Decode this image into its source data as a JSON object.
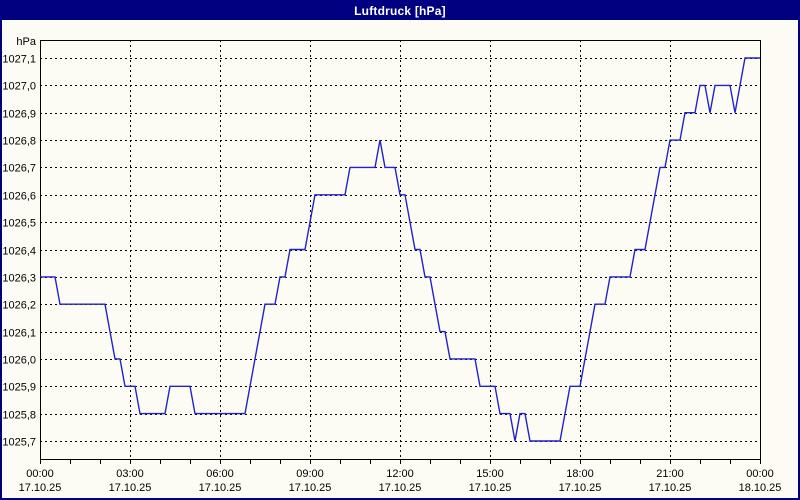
{
  "title": "Luftdruck [hPa]",
  "colors": {
    "titlebar_background": "#000080",
    "titlebar_text": "#ffffff",
    "outer_border": "#000080",
    "background": "#fcfcf4",
    "plot_frame": "#000000",
    "gridline": "#000000",
    "line": "#2222cc",
    "label_text": "#000000"
  },
  "y_axis": {
    "unit_label": "hPa",
    "min": 1025.7,
    "max": 1027.1,
    "step": 0.1,
    "tick_labels": [
      "1027,1",
      "1027,0",
      "1026,9",
      "1026,8",
      "1026,7",
      "1026,6",
      "1026,5",
      "1026,4",
      "1026,3",
      "1026,2",
      "1026,1",
      "1026,0",
      "1025,9",
      "1025,8",
      "1025,7"
    ]
  },
  "x_axis": {
    "minor_tick_interval_hours": 1,
    "major_tick_interval_hours": 3,
    "major_ticks": [
      {
        "time": "00:00",
        "date": "17.10.25"
      },
      {
        "time": "03:00",
        "date": "17.10.25"
      },
      {
        "time": "06:00",
        "date": "17.10.25"
      },
      {
        "time": "09:00",
        "date": "17.10.25"
      },
      {
        "time": "12:00",
        "date": "17.10.25"
      },
      {
        "time": "15:00",
        "date": "17.10.25"
      },
      {
        "time": "18:00",
        "date": "17.10.25"
      },
      {
        "time": "21:00",
        "date": "17.10.25"
      },
      {
        "time": "00:00",
        "date": "18.10.25"
      }
    ]
  },
  "chart_data": {
    "type": "line",
    "title": "Luftdruck [hPa]",
    "ylabel": "hPa",
    "ylim": [
      1025.7,
      1027.1
    ],
    "grid": true,
    "start": "17.10.25 00:00",
    "end": "18.10.25 00:00",
    "sample_interval_minutes": 10,
    "series": [
      {
        "name": "Luftdruck",
        "values": [
          1026.3,
          1026.3,
          1026.3,
          1026.3,
          1026.2,
          1026.2,
          1026.2,
          1026.2,
          1026.2,
          1026.2,
          1026.2,
          1026.2,
          1026.2,
          1026.2,
          1026.1,
          1026.0,
          1026.0,
          1025.9,
          1025.9,
          1025.9,
          1025.8,
          1025.8,
          1025.8,
          1025.8,
          1025.8,
          1025.8,
          1025.9,
          1025.9,
          1025.9,
          1025.9,
          1025.9,
          1025.8,
          1025.8,
          1025.8,
          1025.8,
          1025.8,
          1025.8,
          1025.8,
          1025.8,
          1025.8,
          1025.8,
          1025.8,
          1025.9,
          1026.0,
          1026.1,
          1026.2,
          1026.2,
          1026.2,
          1026.3,
          1026.3,
          1026.4,
          1026.4,
          1026.4,
          1026.4,
          1026.5,
          1026.6,
          1026.6,
          1026.6,
          1026.6,
          1026.6,
          1026.6,
          1026.6,
          1026.7,
          1026.7,
          1026.7,
          1026.7,
          1026.7,
          1026.7,
          1026.8,
          1026.7,
          1026.7,
          1026.7,
          1026.6,
          1026.6,
          1026.5,
          1026.4,
          1026.4,
          1026.3,
          1026.3,
          1026.2,
          1026.1,
          1026.1,
          1026.0,
          1026.0,
          1026.0,
          1026.0,
          1026.0,
          1026.0,
          1025.9,
          1025.9,
          1025.9,
          1025.9,
          1025.8,
          1025.8,
          1025.8,
          1025.7,
          1025.8,
          1025.8,
          1025.7,
          1025.7,
          1025.7,
          1025.7,
          1025.7,
          1025.7,
          1025.7,
          1025.8,
          1025.9,
          1025.9,
          1025.9,
          1026.0,
          1026.1,
          1026.2,
          1026.2,
          1026.2,
          1026.3,
          1026.3,
          1026.3,
          1026.3,
          1026.3,
          1026.4,
          1026.4,
          1026.4,
          1026.5,
          1026.6,
          1026.7,
          1026.7,
          1026.8,
          1026.8,
          1026.8,
          1026.9,
          1026.9,
          1026.9,
          1027.0,
          1027.0,
          1026.9,
          1027.0,
          1027.0,
          1027.0,
          1027.0,
          1026.9,
          1027.0,
          1027.1,
          1027.1,
          1027.1,
          1027.1
        ]
      }
    ]
  }
}
